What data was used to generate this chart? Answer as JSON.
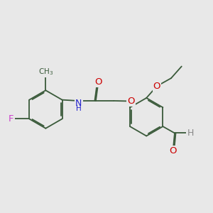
{
  "background_color": "#e8e8e8",
  "bond_color": "#3a5a3a",
  "atom_colors": {
    "O": "#cc0000",
    "N": "#2222cc",
    "F": "#cc44cc",
    "H": "#888888",
    "C": "#3a5a3a"
  },
  "font_size": 8.5,
  "fig_size": [
    3.0,
    3.0
  ],
  "dpi": 100,
  "lw": 1.3
}
